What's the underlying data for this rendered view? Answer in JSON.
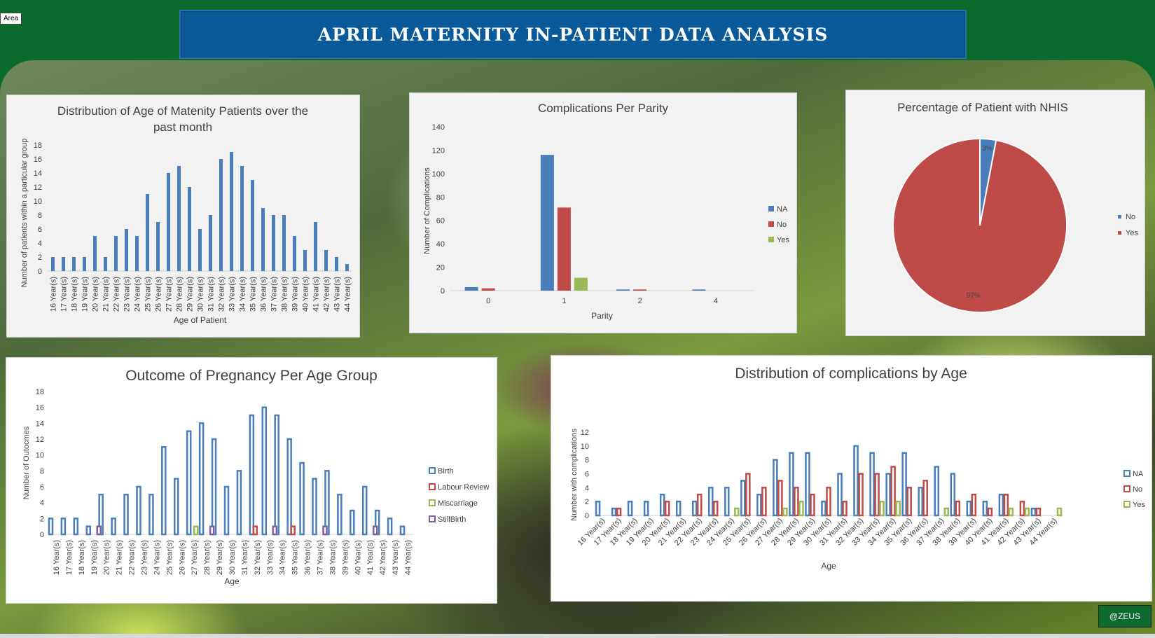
{
  "header": {
    "area_tag": "Area",
    "title": "April Maternity In-Patient Data Analysis",
    "credit": "@ZEUS"
  },
  "colors": {
    "blue": "#4a7ebb",
    "red": "#be4b48",
    "green": "#98b954",
    "purple": "#7d60a0",
    "banner": "#0a5a9a",
    "background": "#0b6b2c"
  },
  "chart_data": [
    {
      "id": "age_distribution",
      "type": "bar",
      "title": "Distribution of Age of Matenity Patients over the past month",
      "title_lines": [
        "Distribution of Age of Matenity Patients over the",
        "past month"
      ],
      "xlabel": "Age of Patient",
      "ylabel": "Number of patients within a particular group",
      "ylim": [
        0,
        18
      ],
      "yticks": [
        0,
        2,
        4,
        6,
        8,
        10,
        12,
        14,
        16,
        18
      ],
      "categories": [
        "16 Year(s)",
        "17 Year(s)",
        "18 Year(s)",
        "19 Year(s)",
        "20 Year(s)",
        "21 Year(s)",
        "22 Year(s)",
        "23 Year(s)",
        "24 Year(s)",
        "25 Year(s)",
        "26 Year(s)",
        "27 Year(s)",
        "28 Year(s)",
        "29 Year(s)",
        "30 Year(s)",
        "31 Year(s)",
        "32 Year(s)",
        "33 Year(s)",
        "34 Year(s)",
        "35 Year(s)",
        "36 Year(s)",
        "37 Year(s)",
        "38 Year(s)",
        "39 Year(s)",
        "40 Year(s)",
        "41 Year(s)",
        "42 Year(s)",
        "43 Year(s)",
        "44 Year(s)"
      ],
      "values": [
        2,
        2,
        2,
        2,
        5,
        2,
        5,
        6,
        5,
        11,
        7,
        14,
        15,
        12,
        6,
        8,
        16,
        17,
        15,
        13,
        9,
        8,
        8,
        5,
        3,
        7,
        3,
        2,
        1
      ]
    },
    {
      "id": "complications_parity",
      "type": "bar",
      "title": "Complications Per Parity",
      "xlabel": "Parity",
      "ylabel": "Number of Complications",
      "ylim": [
        0,
        140
      ],
      "yticks": [
        0,
        20,
        40,
        60,
        80,
        100,
        120,
        140
      ],
      "categories": [
        "0",
        "1",
        "2",
        "4"
      ],
      "legend_position": "right",
      "series": [
        {
          "name": "NA",
          "values": [
            3,
            116,
            1,
            1
          ]
        },
        {
          "name": "No",
          "values": [
            2,
            71,
            1,
            0
          ]
        },
        {
          "name": "Yes",
          "values": [
            0,
            11,
            0,
            0
          ]
        }
      ]
    },
    {
      "id": "nhis",
      "type": "pie",
      "title": "Percentage of Patient with NHIS",
      "legend_position": "right",
      "slices": [
        {
          "name": "No",
          "value": 3,
          "label": "3%"
        },
        {
          "name": "Yes",
          "value": 97,
          "label": "97%"
        }
      ]
    },
    {
      "id": "outcome_age",
      "type": "bar",
      "title": "Outcome of Pregnancy Per Age Group",
      "xlabel": "Age",
      "ylabel": "Number of Outocmes",
      "ylim": [
        0,
        18
      ],
      "yticks": [
        0,
        2,
        4,
        6,
        8,
        10,
        12,
        14,
        16,
        18
      ],
      "legend_position": "right",
      "categories": [
        "16 Year(s)",
        "17 Year(s)",
        "18 Year(s)",
        "19 Year(s)",
        "20 Year(s)",
        "21 Year(s)",
        "22 Year(s)",
        "23 Year(s)",
        "24 Year(s)",
        "25 Year(s)",
        "26 Year(s)",
        "27 Year(s)",
        "28 Year(s)",
        "29 Year(s)",
        "30 Year(s)",
        "31 Year(s)",
        "32 Year(s)",
        "33 Year(s)",
        "34 Year(s)",
        "35 Year(s)",
        "36 Year(s)",
        "37 Year(s)",
        "38 Year(s)",
        "39 Year(s)",
        "40 Year(s)",
        "41 Year(s)",
        "42 Year(s)",
        "43 Year(s)",
        "44 Year(s)"
      ],
      "series": [
        {
          "name": "Birth",
          "values": [
            2,
            2,
            2,
            1,
            5,
            2,
            5,
            6,
            5,
            11,
            7,
            13,
            14,
            12,
            6,
            8,
            15,
            16,
            15,
            12,
            9,
            7,
            8,
            5,
            3,
            6,
            3,
            2,
            1
          ]
        },
        {
          "name": "Labour Review",
          "values": [
            0,
            0,
            0,
            0,
            0,
            0,
            0,
            0,
            0,
            0,
            0,
            0,
            0,
            0,
            0,
            0,
            1,
            0,
            0,
            1,
            0,
            0,
            0,
            0,
            0,
            0,
            0,
            0,
            0
          ]
        },
        {
          "name": "Miscarriage",
          "values": [
            0,
            0,
            0,
            0,
            0,
            0,
            0,
            0,
            0,
            0,
            0,
            1,
            0,
            0,
            0,
            0,
            0,
            0,
            0,
            0,
            0,
            0,
            0,
            0,
            0,
            0,
            0,
            0,
            0
          ]
        },
        {
          "name": "StillBirth",
          "values": [
            0,
            0,
            0,
            1,
            0,
            0,
            0,
            0,
            0,
            0,
            0,
            0,
            1,
            0,
            0,
            0,
            0,
            1,
            0,
            0,
            0,
            1,
            0,
            0,
            0,
            1,
            0,
            0,
            0
          ]
        }
      ]
    },
    {
      "id": "complications_age",
      "type": "bar",
      "title": "Distribution of complications by Age",
      "xlabel": "Age",
      "ylabel": "Number with complications",
      "ylim": [
        0,
        12
      ],
      "yticks": [
        0,
        2,
        4,
        6,
        8,
        10,
        12
      ],
      "legend_position": "right",
      "categories": [
        "16 Year(s)",
        "17 Year(s)",
        "18 Year(s)",
        "19 Year(s)",
        "20 Year(s)",
        "21 Year(s)",
        "22 Year(s)",
        "23 Year(s)",
        "24 Year(s)",
        "25 Year(s)",
        "26 Year(s)",
        "27 Year(s)",
        "28 Year(s)",
        "29 Year(s)",
        "30 Year(s)",
        "31 Year(s)",
        "32 Year(s)",
        "33 Year(s)",
        "34 Year(s)",
        "35 Year(s)",
        "36 Year(s)",
        "37 Year(s)",
        "38 Year(s)",
        "39 Year(s)",
        "40 Year(s)",
        "41 Year(s)",
        "42 Year(s)",
        "43 Year(s)",
        "44 Year(s)"
      ],
      "series": [
        {
          "name": "NA",
          "values": [
            2,
            1,
            2,
            2,
            3,
            2,
            2,
            4,
            4,
            5,
            3,
            8,
            9,
            9,
            2,
            6,
            10,
            9,
            6,
            9,
            4,
            7,
            6,
            2,
            2,
            3,
            0,
            1,
            0
          ]
        },
        {
          "name": "No",
          "values": [
            0,
            1,
            0,
            0,
            2,
            0,
            3,
            2,
            0,
            6,
            4,
            5,
            4,
            3,
            4,
            2,
            6,
            6,
            7,
            4,
            5,
            0,
            2,
            3,
            1,
            3,
            2,
            1,
            0
          ]
        },
        {
          "name": "Yes",
          "values": [
            0,
            0,
            0,
            0,
            0,
            0,
            0,
            0,
            1,
            0,
            0,
            1,
            2,
            0,
            0,
            0,
            0,
            2,
            2,
            0,
            0,
            1,
            0,
            0,
            0,
            1,
            1,
            0,
            1
          ]
        }
      ]
    }
  ]
}
